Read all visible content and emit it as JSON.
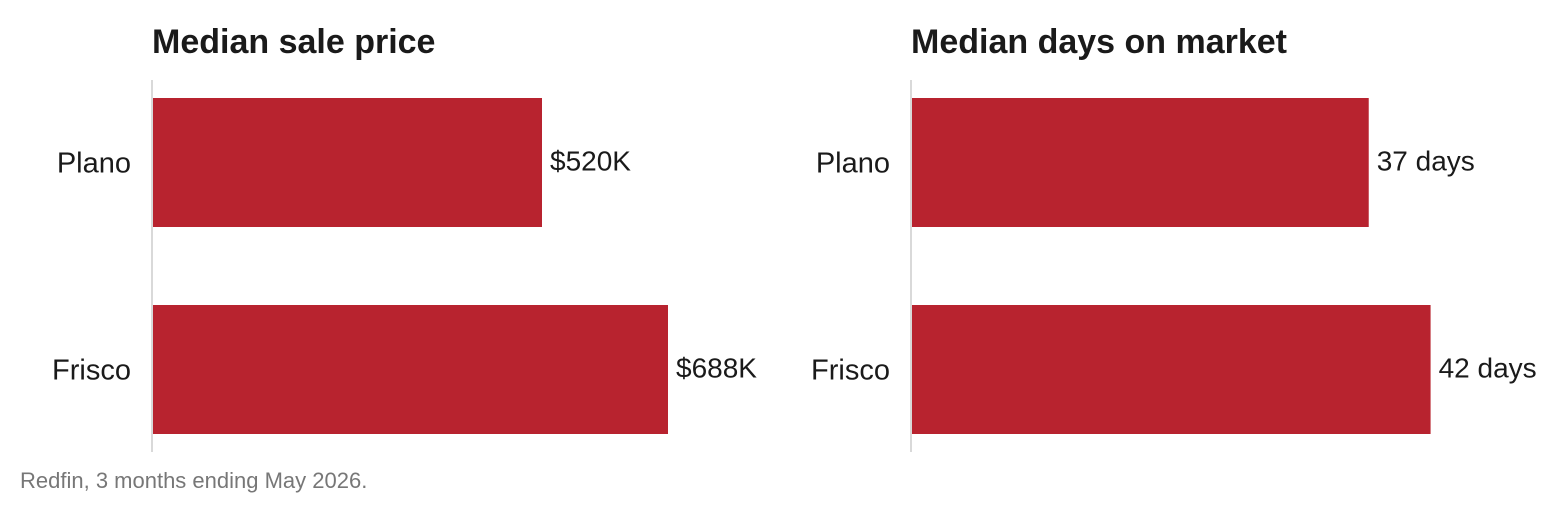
{
  "chart_data": [
    {
      "type": "bar",
      "orientation": "horizontal",
      "title": "Median sale price",
      "categories": [
        "Plano",
        "Frisco"
      ],
      "values": [
        520000,
        688000
      ],
      "value_labels": [
        "$520K",
        "$688K"
      ],
      "xlim": [
        0,
        800000
      ],
      "grid": false,
      "bar_color": "#b8232f"
    },
    {
      "type": "bar",
      "orientation": "horizontal",
      "title": "Median days on market",
      "categories": [
        "Plano",
        "Frisco"
      ],
      "values": [
        37,
        42
      ],
      "value_labels": [
        "37 days",
        "42 days"
      ],
      "xlim": [
        0,
        48.5
      ],
      "grid": false,
      "bar_color": "#b8232f"
    }
  ],
  "source": "Redfin, 3 months ending May 2026."
}
